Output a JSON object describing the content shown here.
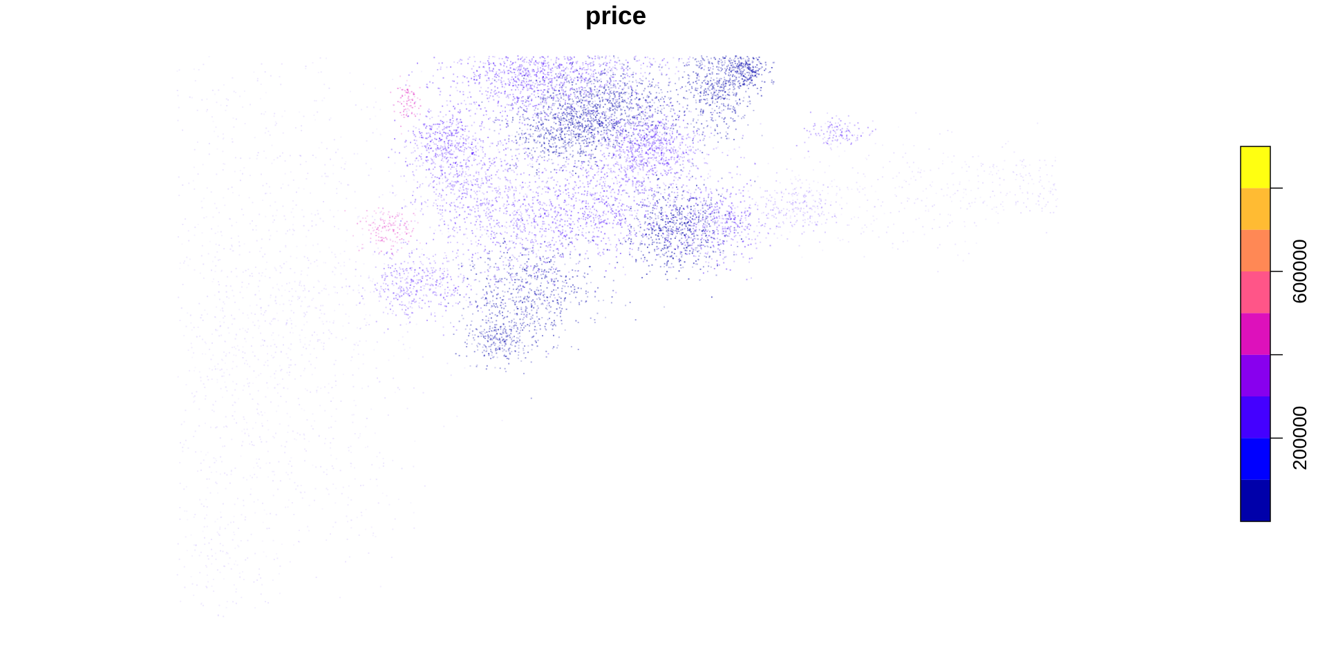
{
  "chart_data": {
    "type": "map-points",
    "title": "price",
    "legend": {
      "breaks": [
        0,
        100000,
        200000,
        300000,
        400000,
        500000,
        600000,
        700000,
        800000,
        900000
      ],
      "colors": [
        "#0000aa",
        "#0000ff",
        "#4400ff",
        "#8800ee",
        "#dd11bb",
        "#ff5588",
        "#ff8855",
        "#ffbb33",
        "#ffff11"
      ],
      "tick_values": [
        200000,
        400000,
        600000,
        800000
      ],
      "tick_labels": [
        "200000",
        "",
        "600000",
        ""
      ]
    },
    "point_style": {
      "dominant_color": "#4400ff",
      "secondary_color": "#0000aa",
      "accent_color": "#dd11bb"
    }
  }
}
